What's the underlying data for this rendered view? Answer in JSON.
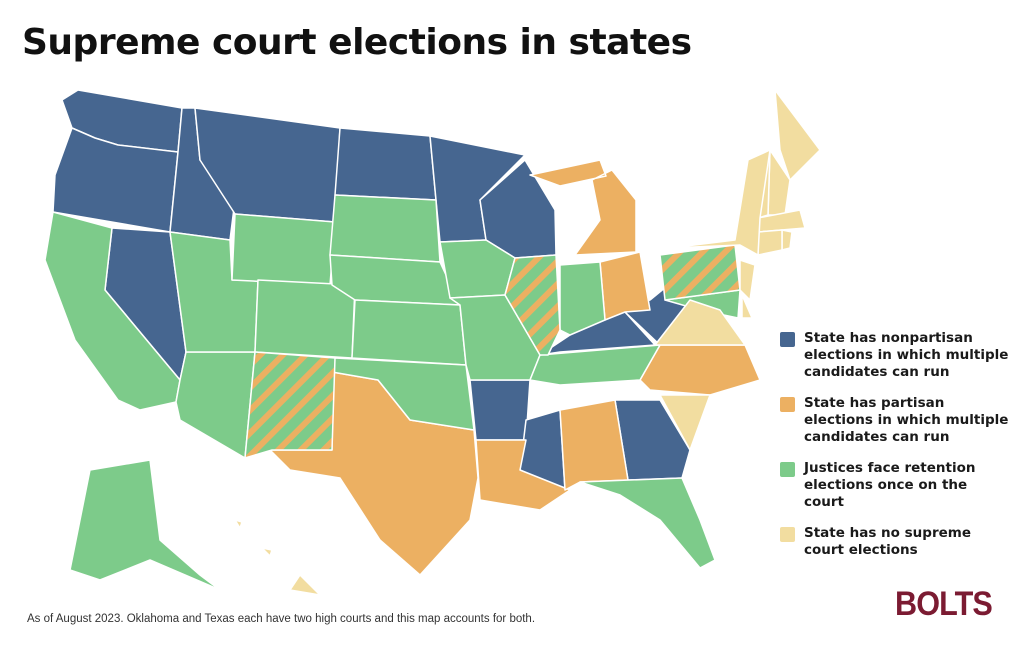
{
  "title": "Supreme court elections in states",
  "colors": {
    "nonpartisan": "#466690",
    "partisan": "#ecb062",
    "retention": "#7dcb8a",
    "none": "#f2dda0",
    "logo": "#7b1b32"
  },
  "legend": [
    {
      "key": "nonpartisan",
      "label": "State has nonpartisan elections in which multiple candidates can run"
    },
    {
      "key": "partisan",
      "label": "State has partisan elections in which multiple candidates can run"
    },
    {
      "key": "retention",
      "label": "Justices face retention elections once on the court"
    },
    {
      "key": "none",
      "label": "State has no supreme court elections"
    }
  ],
  "states": {
    "WA": "nonpartisan",
    "OR": "nonpartisan",
    "ID": "nonpartisan",
    "MT": "nonpartisan",
    "ND": "nonpartisan",
    "MN": "nonpartisan",
    "WI": "nonpartisan",
    "NV": "nonpartisan",
    "AR": "nonpartisan",
    "MS": "nonpartisan",
    "GA": "nonpartisan",
    "KY": "nonpartisan",
    "WV": "nonpartisan",
    "MI": "partisan",
    "OH": "partisan",
    "TX": "partisan",
    "LA": "partisan",
    "AL": "partisan",
    "NC": "partisan",
    "CA": "retention",
    "AZ": "retention",
    "UT": "retention",
    "WY": "retention",
    "CO": "retention",
    "SD": "retention",
    "NE": "retention",
    "KS": "retention",
    "OK": "retention",
    "IA": "retention",
    "MO": "retention",
    "IN": "retention",
    "TN": "retention",
    "FL": "retention",
    "AK": "retention",
    "MD": "retention",
    "IL": "partisan+retention",
    "PA": "partisan+retention",
    "NM": "partisan+retention",
    "ME": "none",
    "NH": "none",
    "VT": "none",
    "MA": "none",
    "RI": "none",
    "CT": "none",
    "NY": "none",
    "NJ": "none",
    "DE": "none",
    "VA": "none",
    "SC": "none",
    "HI": "none"
  },
  "footnote": "As of August 2023. Oklahoma and Texas each have two high courts and this map accounts for both.",
  "logo": "BOLTS"
}
